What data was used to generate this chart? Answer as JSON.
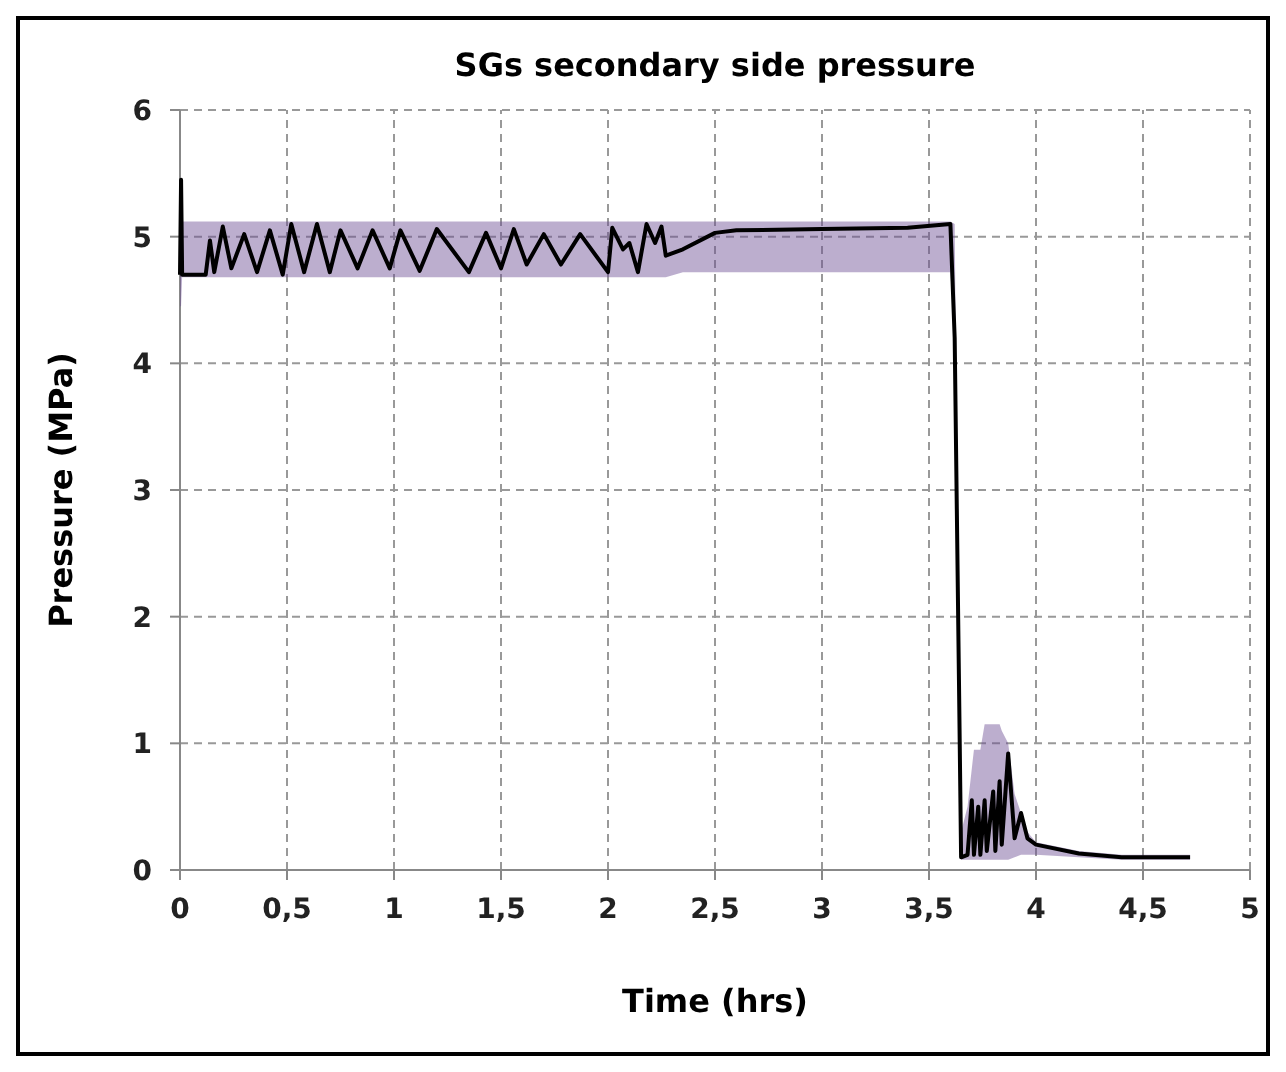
{
  "chart_data": {
    "type": "line",
    "title": "SGs secondary side pressure",
    "xlabel": "Time (hrs)",
    "ylabel": "Pressure (MPa)",
    "xlim": [
      0,
      5
    ],
    "ylim": [
      0,
      6
    ],
    "xticks": [
      0,
      {
        "value": 0.5,
        "label": "0,5"
      },
      1,
      {
        "value": 1.5,
        "label": "1,5"
      },
      2,
      {
        "value": 2.5,
        "label": "2,5"
      },
      3,
      {
        "value": 3.5,
        "label": "3,5"
      },
      4,
      {
        "value": 4.5,
        "label": "4,5"
      },
      5
    ],
    "yticks": [
      0,
      1,
      2,
      3,
      4,
      5,
      6
    ],
    "grid": true,
    "line_style": "solid",
    "marker": "none",
    "series": [
      {
        "color": "#000000",
        "x": [
          0,
          0.005,
          0.01,
          0.12,
          0.14,
          0.16,
          0.2,
          0.24,
          0.3,
          0.36,
          0.42,
          0.48,
          0.52,
          0.58,
          0.64,
          0.7,
          0.75,
          0.83,
          0.9,
          0.98,
          1.03,
          1.12,
          1.2,
          1.35,
          1.43,
          1.5,
          1.56,
          1.62,
          1.7,
          1.78,
          1.87,
          2.0,
          2.02,
          2.07,
          2.1,
          2.14,
          2.18,
          2.22,
          2.25,
          2.27,
          2.35,
          2.5,
          2.6,
          3.0,
          3.4,
          3.6,
          3.62,
          3.64,
          3.65,
          3.68,
          3.7,
          3.71,
          3.73,
          3.74,
          3.76,
          3.77,
          3.8,
          3.81,
          3.83,
          3.84,
          3.87,
          3.9,
          3.93,
          3.96,
          4.0,
          4.2,
          4.4,
          4.72
        ],
        "values": [
          4.7,
          5.45,
          4.7,
          4.7,
          4.97,
          4.72,
          5.08,
          4.75,
          5.02,
          4.72,
          5.05,
          4.7,
          5.1,
          4.72,
          5.1,
          4.72,
          5.05,
          4.75,
          5.05,
          4.75,
          5.05,
          4.73,
          5.06,
          4.72,
          5.03,
          4.75,
          5.06,
          4.78,
          5.02,
          4.78,
          5.02,
          4.72,
          5.07,
          4.9,
          4.95,
          4.72,
          5.1,
          4.95,
          5.08,
          4.85,
          4.9,
          5.03,
          5.05,
          5.06,
          5.07,
          5.1,
          4.2,
          1.5,
          0.1,
          0.12,
          0.55,
          0.12,
          0.5,
          0.12,
          0.55,
          0.15,
          0.62,
          0.15,
          0.7,
          0.2,
          0.92,
          0.25,
          0.45,
          0.25,
          0.2,
          0.13,
          0.1,
          0.1
        ],
        "lower": [
          4.45,
          4.45,
          4.68,
          4.68,
          4.68,
          4.68,
          4.68,
          4.68,
          4.68,
          4.68,
          4.68,
          4.68,
          4.68,
          4.68,
          4.68,
          4.68,
          4.68,
          4.68,
          4.68,
          4.68,
          4.68,
          4.68,
          4.68,
          4.68,
          4.68,
          4.68,
          4.68,
          4.68,
          4.68,
          4.68,
          4.68,
          4.68,
          4.68,
          4.68,
          4.68,
          4.68,
          4.68,
          4.68,
          4.68,
          4.68,
          4.72,
          4.72,
          4.72,
          4.72,
          4.72,
          4.72,
          4.2,
          1.5,
          0.08,
          0.08,
          0.08,
          0.08,
          0.08,
          0.08,
          0.08,
          0.08,
          0.08,
          0.08,
          0.08,
          0.08,
          0.08,
          0.1,
          0.12,
          0.12,
          0.12,
          0.1,
          0.08,
          0.08
        ],
        "upper": [
          5.45,
          5.45,
          5.12,
          5.12,
          5.12,
          5.12,
          5.12,
          5.12,
          5.12,
          5.12,
          5.12,
          5.12,
          5.12,
          5.12,
          5.12,
          5.12,
          5.12,
          5.12,
          5.12,
          5.12,
          5.12,
          5.12,
          5.12,
          5.12,
          5.12,
          5.12,
          5.12,
          5.12,
          5.12,
          5.12,
          5.12,
          5.12,
          5.12,
          5.12,
          5.12,
          5.12,
          5.12,
          5.12,
          5.12,
          5.12,
          5.12,
          5.12,
          5.12,
          5.12,
          5.12,
          5.12,
          5.1,
          1.5,
          0.3,
          0.5,
          0.8,
          0.95,
          0.95,
          0.95,
          1.15,
          1.15,
          1.15,
          1.15,
          1.15,
          1.1,
          1.0,
          0.6,
          0.45,
          0.3,
          0.22,
          0.15,
          0.12,
          0.12
        ]
      }
    ]
  }
}
